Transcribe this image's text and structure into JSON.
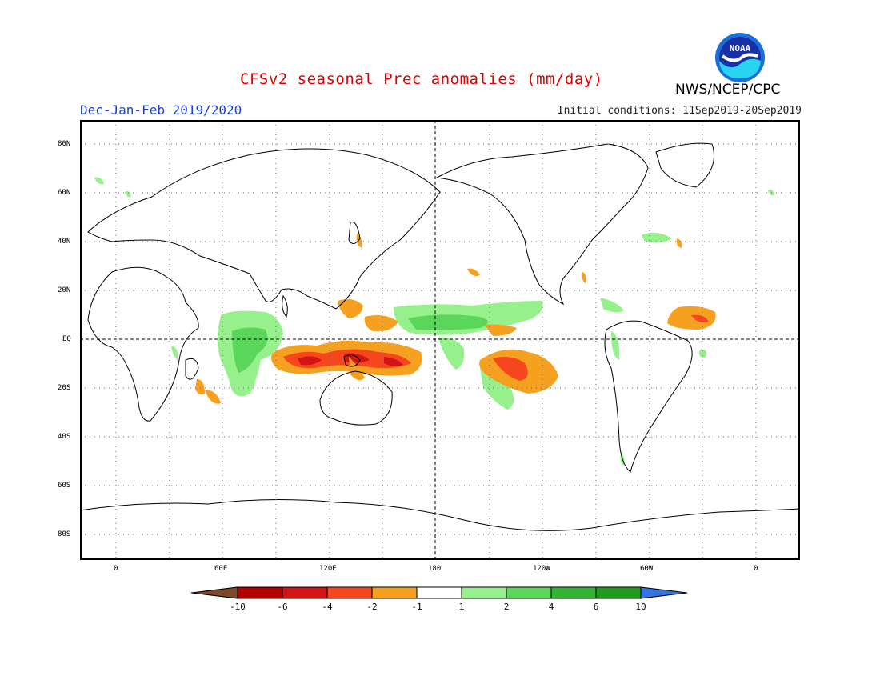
{
  "header": {
    "title": "CFSv2 seasonal Prec anomalies (mm/day)",
    "period": "Dec-Jan-Feb 2019/2020",
    "initial_conditions": "Initial conditions: 11Sep2019-20Sep2019",
    "agency": "NWS/NCEP/CPC",
    "logo_text": "NOAA"
  },
  "map": {
    "lat_labels": [
      "80N",
      "60N",
      "40N",
      "20N",
      "EQ",
      "20S",
      "40S",
      "60S",
      "80S"
    ],
    "lon_labels": [
      "0",
      "60E",
      "120E",
      "180",
      "120W",
      "60W",
      "0"
    ]
  },
  "legend": {
    "labels": [
      "-10",
      "-6",
      "-4",
      "-2",
      "-1",
      "1",
      "2",
      "4",
      "6",
      "10"
    ],
    "colors": {
      "lt_m10": "#7a4a2a",
      "m10_m6": "#b40000",
      "m6_m4": "#d21414",
      "m4_m2": "#f5461e",
      "m2_m1": "#f5a01e",
      "m1_1": "#ffffff",
      "1_2": "#96f08c",
      "2_4": "#5ad75a",
      "4_6": "#32b432",
      "6_10": "#1e9b1e",
      "gt_10": "#3273e6"
    }
  }
}
